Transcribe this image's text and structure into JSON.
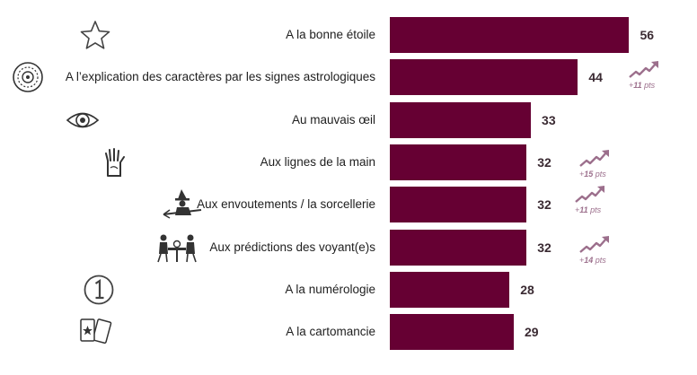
{
  "chart_data": {
    "type": "bar",
    "orientation": "horizontal",
    "title": "",
    "xlabel": "",
    "ylabel": "",
    "xlim": [
      0,
      58
    ],
    "grid": false,
    "legend": "none",
    "bar_color": "#660033",
    "trend_color": "#9c6f8c",
    "categories": [
      "A la bonne étoile",
      "A l’explication des caractères par les signes astrologiques",
      "Au mauvais œil",
      "Aux lignes de la main",
      "Aux envoutements / la sorcellerie",
      "Aux prédictions des voyant(e)s",
      "A la numérologie",
      "A la cartomancie"
    ],
    "icons": [
      "star-icon",
      "zodiac-wheel-icon",
      "evil-eye-icon",
      "palm-hand-icon",
      "witch-broom-icon",
      "fortune-teller-icon",
      "number-one-icon",
      "tarot-cards-icon"
    ],
    "values": [
      56,
      44,
      33,
      32,
      32,
      32,
      28,
      29
    ],
    "value_labels": [
      "56",
      "44",
      "33",
      "32",
      "32",
      "32",
      "28",
      "29"
    ],
    "trends": [
      {
        "index": 1,
        "sign": "+",
        "number": "11",
        "unit": " pts"
      },
      {
        "index": 3,
        "sign": "+",
        "number": "15",
        "unit": " pts"
      },
      {
        "index": 4,
        "sign": "+",
        "number": "11",
        "unit": " pts"
      },
      {
        "index": 5,
        "sign": "+",
        "number": "14",
        "unit": " pts"
      }
    ]
  }
}
